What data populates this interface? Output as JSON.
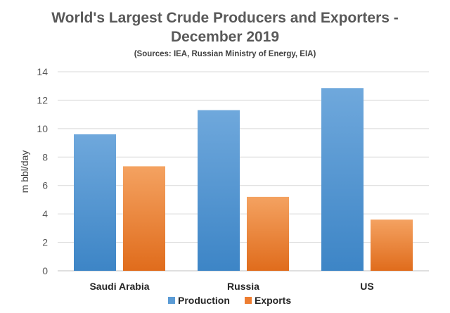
{
  "chart_data": {
    "type": "bar",
    "title": "World's Largest Crude Producers and Exporters -",
    "title_line2": "December 2019",
    "subtitle": "(Sources: IEA, Russian Ministry of Energy, EIA)",
    "xlabel": "",
    "ylabel": "m bbl/day",
    "ylim": [
      0,
      14
    ],
    "yticks": [
      0,
      2,
      4,
      6,
      8,
      10,
      12,
      14
    ],
    "categories": [
      "Saudi Arabia",
      "Russia",
      "US"
    ],
    "series": [
      {
        "name": "Production",
        "color": "#5b9bd5",
        "values": [
          9.6,
          11.3,
          12.85
        ]
      },
      {
        "name": "Exports",
        "color": "#ed7d31",
        "values": [
          7.35,
          5.2,
          3.6
        ]
      }
    ],
    "grid": true,
    "legend_position": "bottom"
  }
}
